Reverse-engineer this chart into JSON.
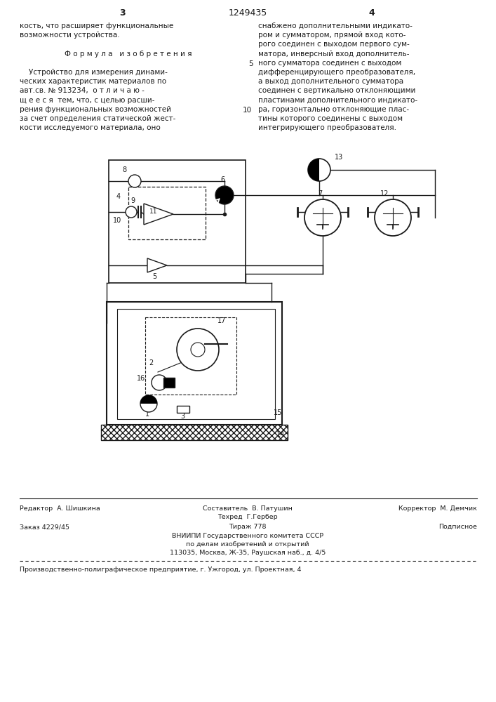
{
  "bg_color": "#ffffff",
  "page_color": "#ffffff",
  "text_color": "#1a1a1a",
  "title_number": "1249435",
  "page_left": "3",
  "page_right": "4",
  "col_left_lines": [
    "кость, что расширяет функциональные",
    "возможности устройства.",
    "",
    "Ф о р м у л а   и з о б р е т е н и я",
    "",
    "    Устройство для измерения динами-",
    "ческих характеристик материалов по",
    "авт.св. № 913234,  о т л и ч а ю -",
    "щ е е с я  тем, что, с целью расши-",
    "рения функциональных возможностей",
    "за счет определения статической жест-",
    "кости исследуемого материала, оно"
  ],
  "col_right_lines": [
    "снабжено дополнительными индикато-",
    "ром и сумматором, прямой вход кото-",
    "рого соединен с выходом первого сум-",
    "матора, инверсный вход дополнитель-",
    "ного сумматора соединен с выходом",
    "дифференцирующего преобразователя,",
    "а выход дополнительного сумматора",
    "соединен с вертикально отклоняющими",
    "пластинами дополнительного индикато-",
    "ра, горизонтально отклоняющие плас-",
    "тины которого соединены с выходом",
    "интегрирующего преобразователя."
  ],
  "footer_line1_left": "Редактор  А. Шишкина",
  "footer_line1_center": "Составитель  В. Патушин",
  "footer_line1_center2": "Техред  Г.Гербер",
  "footer_line1_right": "Корректор  М. Демчик",
  "footer_line2_left": "Заказ 4229/45",
  "footer_line2_center": "Тираж 778",
  "footer_line2_right": "Подписное",
  "footer_line3": "ВНИИПИ Государственного комитета СССР",
  "footer_line4": "по делам изобретений и открытий",
  "footer_line5": "113035, Москва, Ж-35, Раушская наб., д. 4/5",
  "footer_line6": "Производственно-полиграфическое предприятие, г. Ужгород, ул. Проектная, 4"
}
